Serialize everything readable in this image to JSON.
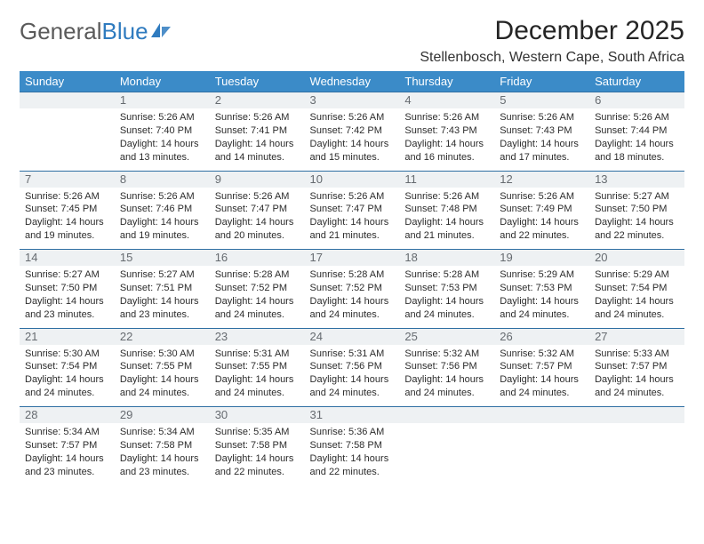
{
  "logo": {
    "prefix": "General",
    "suffix": "Blue"
  },
  "title": "December 2025",
  "subtitle": "Stellenbosch, Western Cape, South Africa",
  "dayNames": [
    "Sunday",
    "Monday",
    "Tuesday",
    "Wednesday",
    "Thursday",
    "Friday",
    "Saturday"
  ],
  "colors": {
    "headerBg": "#3b8bc8",
    "headerText": "#ffffff",
    "dayNumBg": "#eef1f3",
    "dayNumText": "#666b70",
    "rule": "#2f6fa3",
    "bodyText": "#2c2c2c",
    "titleText": "#252525",
    "logoGray": "#5a5a5a",
    "logoBlue": "#2f7bbf"
  },
  "weeks": [
    [
      null,
      {
        "n": "1",
        "sr": "5:26 AM",
        "ss": "7:40 PM",
        "dl": "14 hours and 13 minutes."
      },
      {
        "n": "2",
        "sr": "5:26 AM",
        "ss": "7:41 PM",
        "dl": "14 hours and 14 minutes."
      },
      {
        "n": "3",
        "sr": "5:26 AM",
        "ss": "7:42 PM",
        "dl": "14 hours and 15 minutes."
      },
      {
        "n": "4",
        "sr": "5:26 AM",
        "ss": "7:43 PM",
        "dl": "14 hours and 16 minutes."
      },
      {
        "n": "5",
        "sr": "5:26 AM",
        "ss": "7:43 PM",
        "dl": "14 hours and 17 minutes."
      },
      {
        "n": "6",
        "sr": "5:26 AM",
        "ss": "7:44 PM",
        "dl": "14 hours and 18 minutes."
      }
    ],
    [
      {
        "n": "7",
        "sr": "5:26 AM",
        "ss": "7:45 PM",
        "dl": "14 hours and 19 minutes."
      },
      {
        "n": "8",
        "sr": "5:26 AM",
        "ss": "7:46 PM",
        "dl": "14 hours and 19 minutes."
      },
      {
        "n": "9",
        "sr": "5:26 AM",
        "ss": "7:47 PM",
        "dl": "14 hours and 20 minutes."
      },
      {
        "n": "10",
        "sr": "5:26 AM",
        "ss": "7:47 PM",
        "dl": "14 hours and 21 minutes."
      },
      {
        "n": "11",
        "sr": "5:26 AM",
        "ss": "7:48 PM",
        "dl": "14 hours and 21 minutes."
      },
      {
        "n": "12",
        "sr": "5:26 AM",
        "ss": "7:49 PM",
        "dl": "14 hours and 22 minutes."
      },
      {
        "n": "13",
        "sr": "5:27 AM",
        "ss": "7:50 PM",
        "dl": "14 hours and 22 minutes."
      }
    ],
    [
      {
        "n": "14",
        "sr": "5:27 AM",
        "ss": "7:50 PM",
        "dl": "14 hours and 23 minutes."
      },
      {
        "n": "15",
        "sr": "5:27 AM",
        "ss": "7:51 PM",
        "dl": "14 hours and 23 minutes."
      },
      {
        "n": "16",
        "sr": "5:28 AM",
        "ss": "7:52 PM",
        "dl": "14 hours and 24 minutes."
      },
      {
        "n": "17",
        "sr": "5:28 AM",
        "ss": "7:52 PM",
        "dl": "14 hours and 24 minutes."
      },
      {
        "n": "18",
        "sr": "5:28 AM",
        "ss": "7:53 PM",
        "dl": "14 hours and 24 minutes."
      },
      {
        "n": "19",
        "sr": "5:29 AM",
        "ss": "7:53 PM",
        "dl": "14 hours and 24 minutes."
      },
      {
        "n": "20",
        "sr": "5:29 AM",
        "ss": "7:54 PM",
        "dl": "14 hours and 24 minutes."
      }
    ],
    [
      {
        "n": "21",
        "sr": "5:30 AM",
        "ss": "7:54 PM",
        "dl": "14 hours and 24 minutes."
      },
      {
        "n": "22",
        "sr": "5:30 AM",
        "ss": "7:55 PM",
        "dl": "14 hours and 24 minutes."
      },
      {
        "n": "23",
        "sr": "5:31 AM",
        "ss": "7:55 PM",
        "dl": "14 hours and 24 minutes."
      },
      {
        "n": "24",
        "sr": "5:31 AM",
        "ss": "7:56 PM",
        "dl": "14 hours and 24 minutes."
      },
      {
        "n": "25",
        "sr": "5:32 AM",
        "ss": "7:56 PM",
        "dl": "14 hours and 24 minutes."
      },
      {
        "n": "26",
        "sr": "5:32 AM",
        "ss": "7:57 PM",
        "dl": "14 hours and 24 minutes."
      },
      {
        "n": "27",
        "sr": "5:33 AM",
        "ss": "7:57 PM",
        "dl": "14 hours and 24 minutes."
      }
    ],
    [
      {
        "n": "28",
        "sr": "5:34 AM",
        "ss": "7:57 PM",
        "dl": "14 hours and 23 minutes."
      },
      {
        "n": "29",
        "sr": "5:34 AM",
        "ss": "7:58 PM",
        "dl": "14 hours and 23 minutes."
      },
      {
        "n": "30",
        "sr": "5:35 AM",
        "ss": "7:58 PM",
        "dl": "14 hours and 22 minutes."
      },
      {
        "n": "31",
        "sr": "5:36 AM",
        "ss": "7:58 PM",
        "dl": "14 hours and 22 minutes."
      },
      null,
      null,
      null
    ]
  ],
  "labels": {
    "sunrise": "Sunrise:",
    "sunset": "Sunset:",
    "daylight": "Daylight:"
  }
}
